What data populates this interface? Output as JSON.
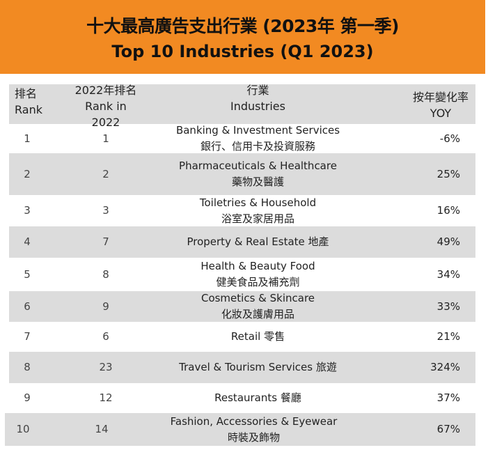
{
  "title_zh": "十大最高廣告支出行業 (2023年 第一季)",
  "title_en": "Top 10 Industries (Q1 2023)",
  "headers": {
    "rank_zh": "排名",
    "rank_en": "Rank",
    "rank2022_zh": "2022年排名",
    "rank2022_en": "Rank in 2022",
    "industry_zh": "行業",
    "industry_en": "Industries",
    "yoy_zh": "按年變化率",
    "yoy_en": "YOY"
  },
  "rows": [
    {
      "rank": "1",
      "rank2022": "1",
      "line1": "Banking & Investment Services",
      "line2": "銀行、信用卡及投資服務",
      "yoy": "-6%"
    },
    {
      "rank": "2",
      "rank2022": "2",
      "line1": "Pharmaceuticals & Healthcare",
      "line2": "藥物及醫護",
      "yoy": "25%"
    },
    {
      "rank": "3",
      "rank2022": "3",
      "line1": "Toiletries & Household",
      "line2": "浴室及家居用品",
      "yoy": "16%"
    },
    {
      "rank": "4",
      "rank2022": "7",
      "line1": "Property & Real Estate 地產",
      "line2": "",
      "yoy": "49%"
    },
    {
      "rank": "5",
      "rank2022": "8",
      "line1": "Health & Beauty Food",
      "line2": "健美食品及補充劑",
      "yoy": "34%"
    },
    {
      "rank": "6",
      "rank2022": "9",
      "line1": "Cosmetics & Skincare",
      "line2": "化妝及護膚用品",
      "yoy": "33%"
    },
    {
      "rank": "7",
      "rank2022": "6",
      "line1": "Retail 零售",
      "line2": "",
      "yoy": "21%"
    },
    {
      "rank": "8",
      "rank2022": "23",
      "line1": "Travel & Tourism Services 旅遊",
      "line2": "",
      "yoy": "324%"
    },
    {
      "rank": "9",
      "rank2022": "12",
      "line1": "Restaurants 餐廳",
      "line2": "",
      "yoy": "37%"
    },
    {
      "rank": "10",
      "rank2022": "14",
      "line1": "Fashion, Accessories & Eyewear",
      "line2": "時裝及飾物",
      "yoy": "67%"
    }
  ],
  "colors": {
    "banner": "#f28a22",
    "stripe": "#dcdcdc"
  }
}
